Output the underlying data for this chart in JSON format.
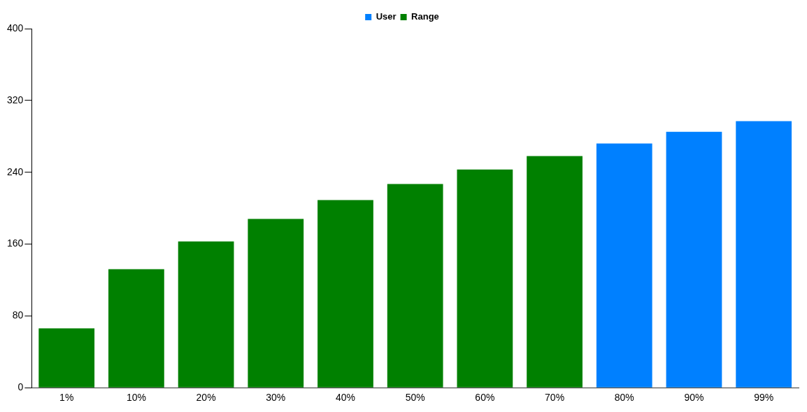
{
  "chart_data": {
    "type": "bar",
    "categories": [
      "1%",
      "10%",
      "20%",
      "30%",
      "40%",
      "50%",
      "60%",
      "70%",
      "80%",
      "90%",
      "99%"
    ],
    "series": [
      {
        "name": "User",
        "color": "#0080ff",
        "values": [
          null,
          null,
          null,
          null,
          null,
          null,
          null,
          null,
          272,
          285,
          297
        ]
      },
      {
        "name": "Range",
        "color": "#008000",
        "values": [
          66,
          132,
          163,
          188,
          209,
          227,
          243,
          258,
          null,
          null,
          null
        ]
      }
    ],
    "ylim": [
      0,
      400
    ],
    "yticks": [
      0,
      80,
      160,
      240,
      320,
      400
    ],
    "grid": false,
    "legend": "top"
  }
}
